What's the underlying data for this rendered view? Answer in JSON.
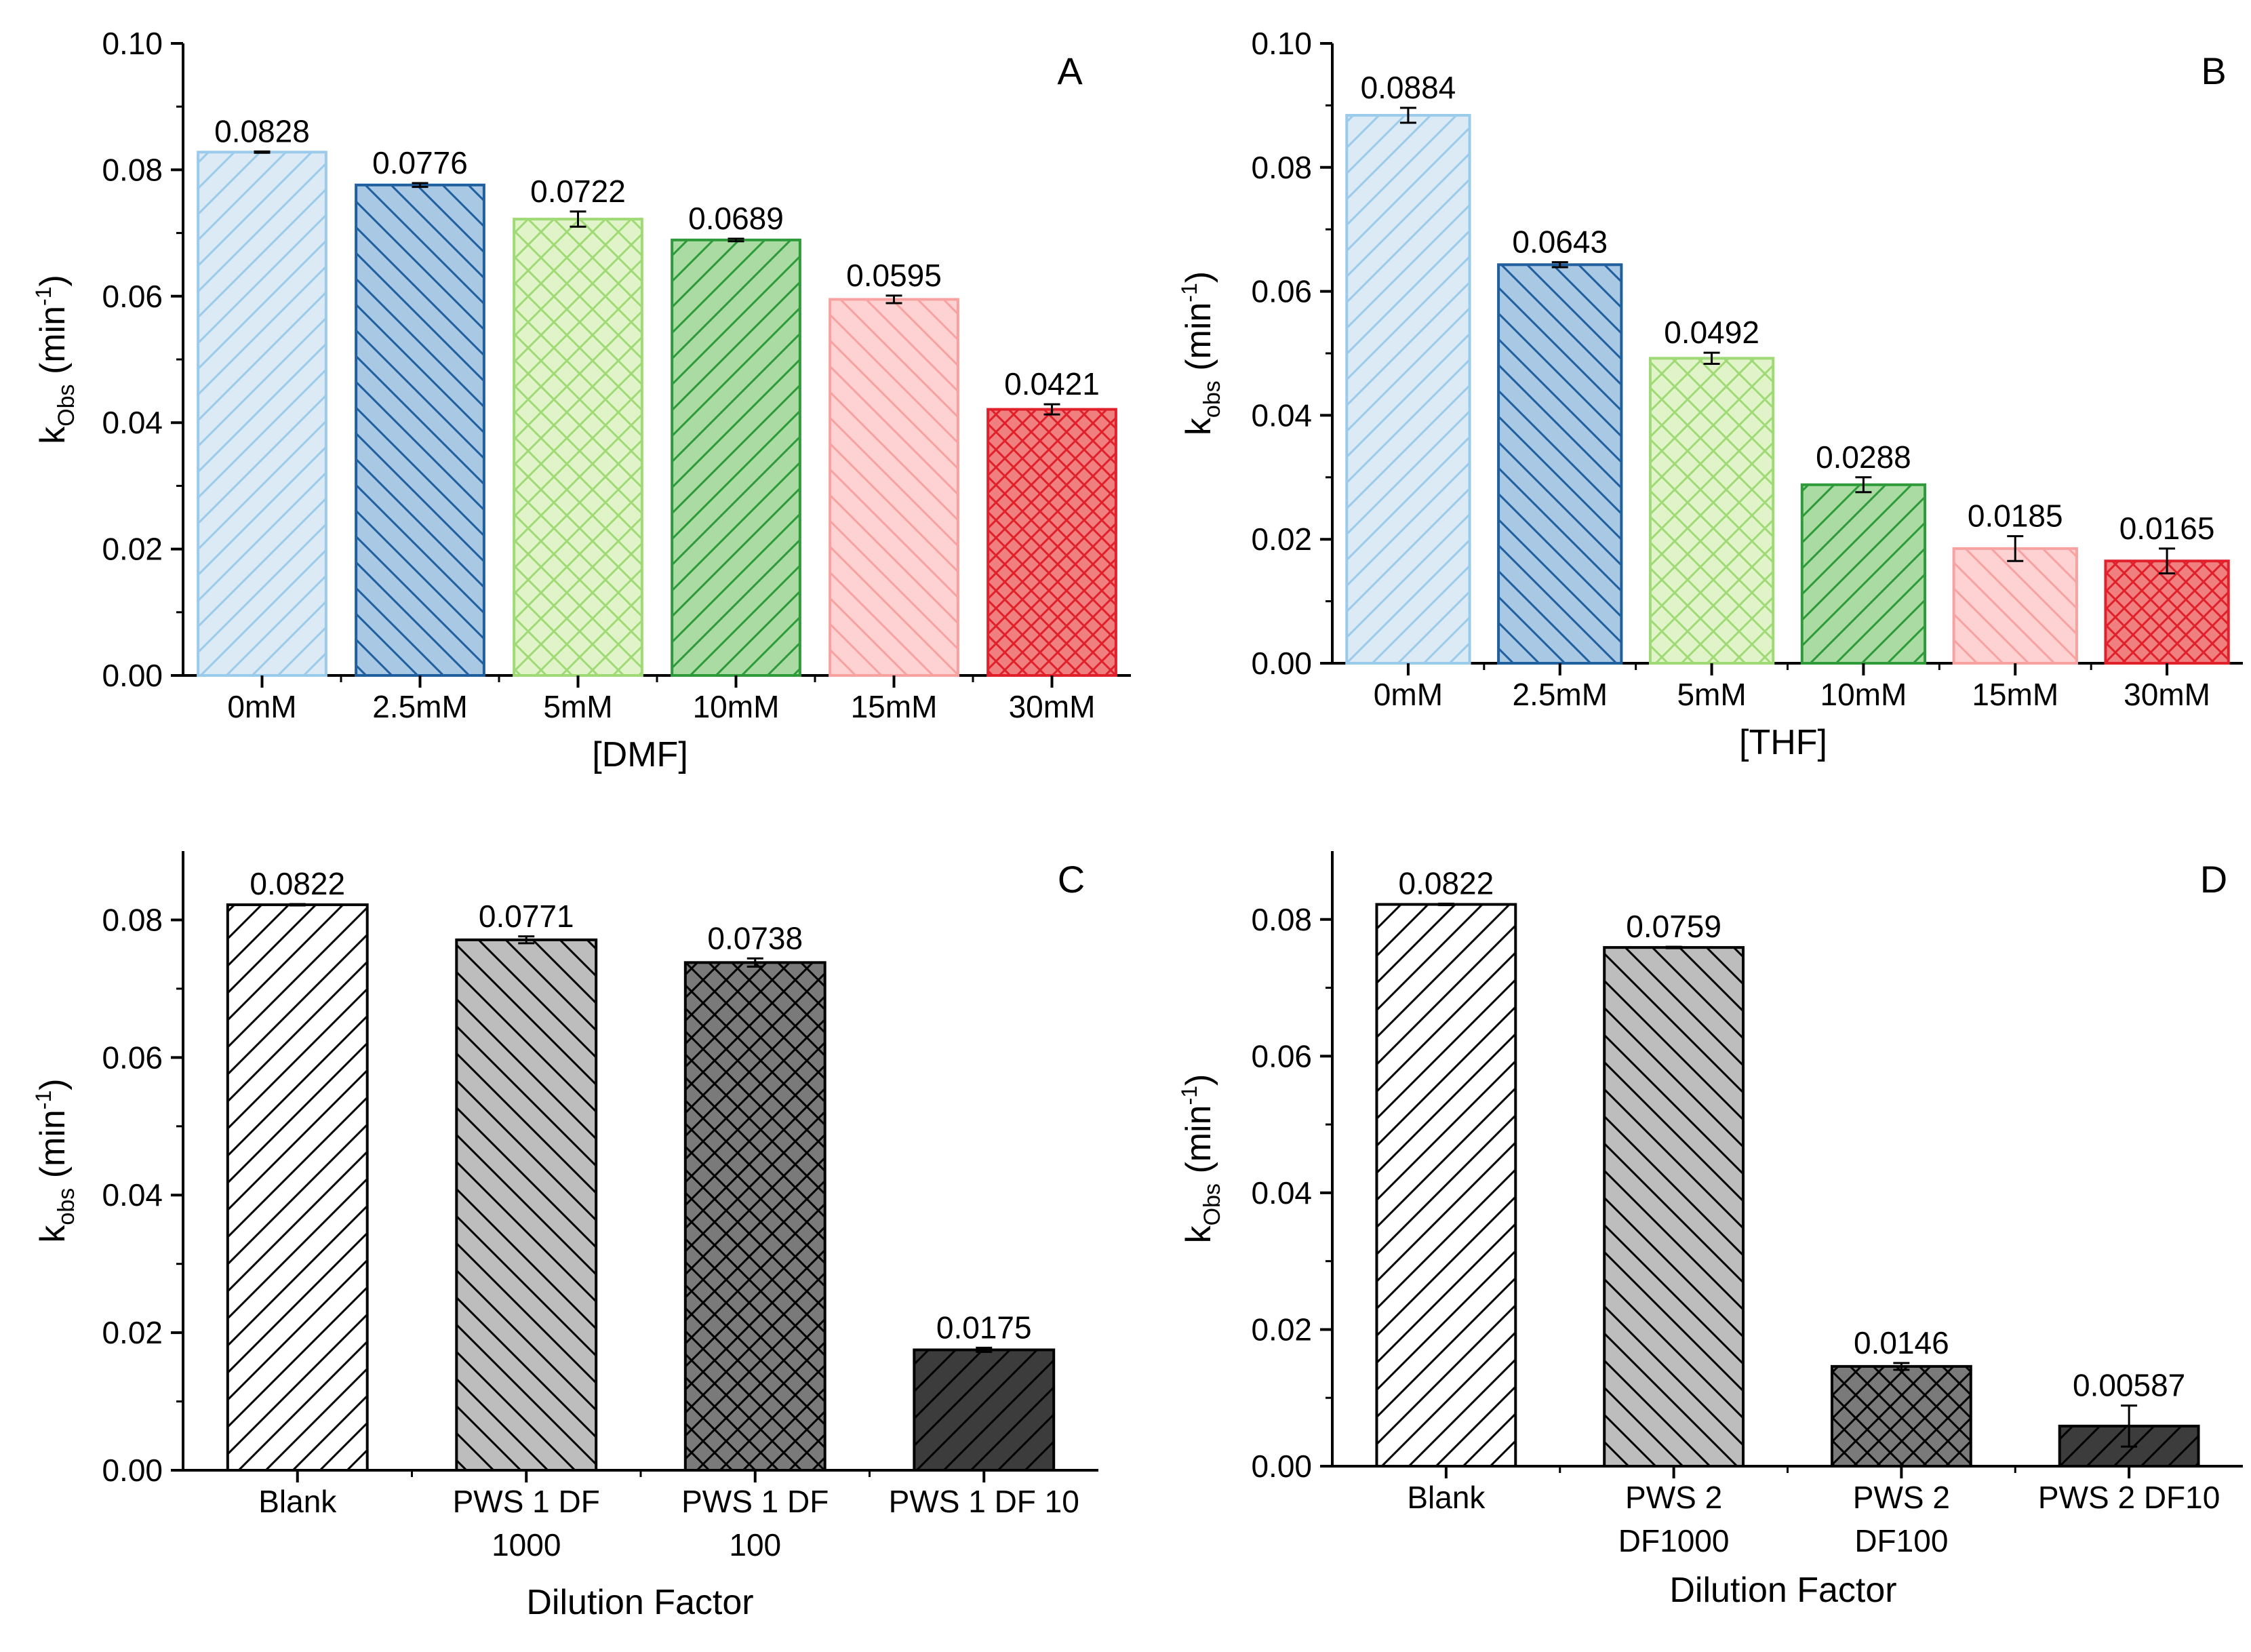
{
  "chart_data": [
    {
      "type": "bar",
      "panel": "A",
      "xlabel": "[DMF]",
      "ylabel": {
        "main": "k",
        "sub": "Obs",
        "unit_open": " (min",
        "unit_sup": "-1",
        "unit_close": ")"
      },
      "ylim": [
        0,
        0.1
      ],
      "yticks": [
        "0.00",
        "0.02",
        "0.04",
        "0.06",
        "0.08",
        "0.10"
      ],
      "categories": [
        [
          "0mM"
        ],
        [
          "2.5mM"
        ],
        [
          "5mM"
        ],
        [
          "10mM"
        ],
        [
          "15mM"
        ],
        [
          "30mM"
        ]
      ],
      "values": [
        0.0828,
        0.0776,
        0.0722,
        0.0689,
        0.0595,
        0.0421
      ],
      "value_labels": [
        "0.0828",
        "0.0776",
        "0.0722",
        "0.0689",
        "0.0595",
        "0.0421"
      ],
      "errors": [
        0.0001,
        0.0003,
        0.0012,
        0.0002,
        0.0006,
        0.0008
      ],
      "fills": [
        "#dbeaf5",
        "#a9c8e4",
        "#e1f4c9",
        "#a9dba3",
        "#fed2d2",
        "#f08080"
      ],
      "strokes": [
        "#9bcbea",
        "#1f5f9e",
        "#9fda76",
        "#2e9a3a",
        "#f8a1a1",
        "#e0202a"
      ],
      "patterns": [
        "fwd",
        "back",
        "cross",
        "fwd",
        "back",
        "xcross"
      ]
    },
    {
      "type": "bar",
      "panel": "B",
      "xlabel": "[THF]",
      "ylabel": {
        "main": "k",
        "sub": "obs",
        "unit_open": " (min",
        "unit_sup": "-1",
        "unit_close": ")"
      },
      "ylim": [
        0,
        0.1
      ],
      "yticks": [
        "0.00",
        "0.02",
        "0.04",
        "0.06",
        "0.08",
        "0.10"
      ],
      "categories": [
        [
          "0mM"
        ],
        [
          "2.5mM"
        ],
        [
          "5mM"
        ],
        [
          "10mM"
        ],
        [
          "15mM"
        ],
        [
          "30mM"
        ]
      ],
      "values": [
        0.0884,
        0.0643,
        0.0492,
        0.0288,
        0.0185,
        0.0165
      ],
      "value_labels": [
        "0.0884",
        "0.0643",
        "0.0492",
        "0.0288",
        "0.0185",
        "0.0165"
      ],
      "errors": [
        0.0012,
        0.0004,
        0.0009,
        0.0012,
        0.002,
        0.002
      ],
      "fills": [
        "#dbeaf5",
        "#a9c8e4",
        "#e1f4c9",
        "#a9dba3",
        "#fed2d2",
        "#f08080"
      ],
      "strokes": [
        "#9bcbea",
        "#1f5f9e",
        "#9fda76",
        "#2e9a3a",
        "#f8a1a1",
        "#e0202a"
      ],
      "patterns": [
        "fwd",
        "back",
        "cross",
        "fwd",
        "back",
        "xcross"
      ]
    },
    {
      "type": "bar",
      "panel": "C",
      "xlabel": "Dilution Factor",
      "ylabel": {
        "main": "k",
        "sub": "obs",
        "unit_open": " (min",
        "unit_sup": "-1",
        "unit_close": ")"
      },
      "ylim": [
        0,
        0.09
      ],
      "yticks": [
        "0.00",
        "0.02",
        "0.04",
        "0.06",
        "0.08"
      ],
      "categories": [
        [
          "Blank"
        ],
        [
          "PWS 1 DF",
          "1000"
        ],
        [
          "PWS 1 DF",
          "100"
        ],
        [
          "PWS 1 DF 10"
        ]
      ],
      "values": [
        0.0822,
        0.0771,
        0.0738,
        0.0175
      ],
      "value_labels": [
        "0.0822",
        "0.0771",
        "0.0738",
        "0.0175"
      ],
      "errors": [
        0.0001,
        0.0005,
        0.0006,
        0.0003
      ],
      "fills": [
        "#ffffff",
        "#bdbdbd",
        "#7a7a7a",
        "#3c3c3c"
      ],
      "strokes": [
        "#000000",
        "#000000",
        "#000000",
        "#000000"
      ],
      "patterns": [
        "fwd",
        "back",
        "xcross",
        "fwd"
      ]
    },
    {
      "type": "bar",
      "panel": "D",
      "xlabel": "Dilution Factor",
      "ylabel": {
        "main": "k",
        "sub": "Obs",
        "unit_open": " (min",
        "unit_sup": "-1",
        "unit_close": ")"
      },
      "ylim": [
        0,
        0.09
      ],
      "yticks": [
        "0.00",
        "0.02",
        "0.04",
        "0.06",
        "0.08"
      ],
      "categories": [
        [
          "Blank"
        ],
        [
          "PWS 2",
          "DF1000"
        ],
        [
          "PWS 2",
          "DF100"
        ],
        [
          "PWS 2 DF10"
        ]
      ],
      "values": [
        0.0822,
        0.0759,
        0.0146,
        0.00587
      ],
      "value_labels": [
        "0.0822",
        "0.0759",
        "0.0146",
        "0.00587"
      ],
      "errors": [
        0.0001,
        0.0001,
        0.0005,
        0.003
      ],
      "fills": [
        "#ffffff",
        "#bdbdbd",
        "#7a7a7a",
        "#3c3c3c"
      ],
      "strokes": [
        "#000000",
        "#000000",
        "#000000",
        "#000000"
      ],
      "patterns": [
        "fwd",
        "back",
        "xcross",
        "fwd"
      ]
    }
  ]
}
